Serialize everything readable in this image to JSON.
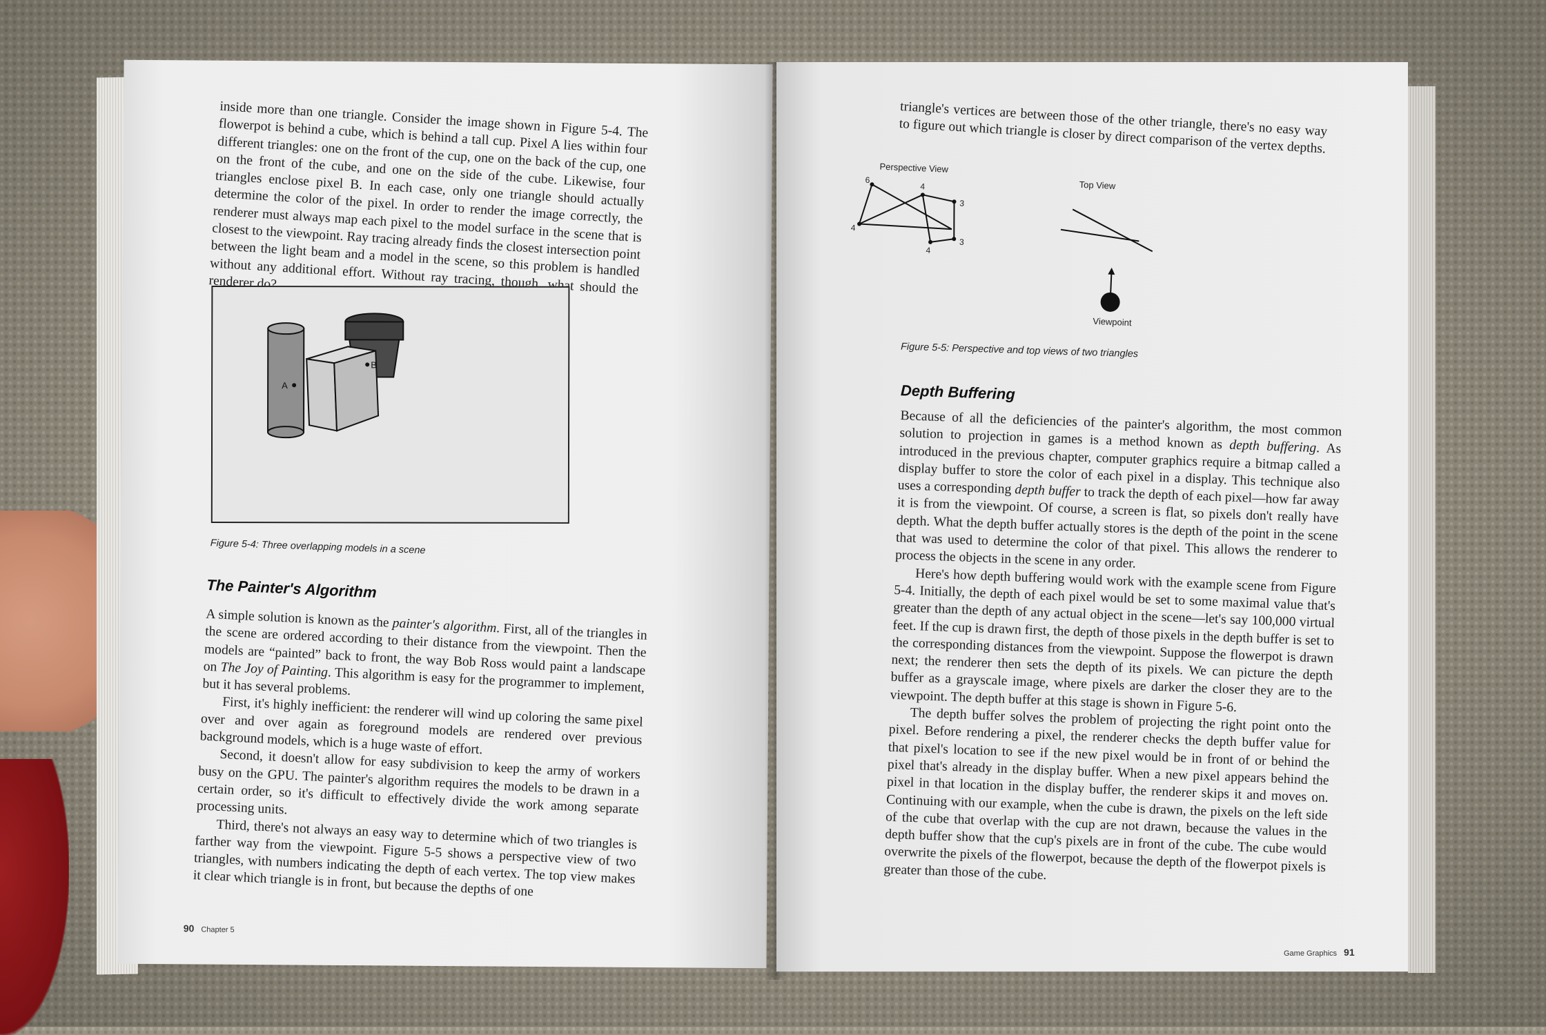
{
  "left_page": {
    "para1": "inside more than one triangle. Consider the image shown in Figure 5-4. The flowerpot is behind a cube, which is behind a tall cup. Pixel A lies within four different triangles: one on the front of the cup, one on the back of the cup, one on the front of the cube, and one on the side of the cube. Likewise, four triangles enclose pixel B. In each case, only one triangle should actually determine the color of the pixel. In order to render the image correctly, the renderer must always map each pixel to the model surface in the scene that is closest to the viewpoint. Ray tracing already finds the closest intersection point between the light beam and a model in the scene, so this problem is handled without any additional effort. Without ray tracing, though, what should the renderer do?",
    "figure_label_a": "A",
    "figure_label_b": "B",
    "figure_caption": "Figure 5-4: Three overlapping models in a scene",
    "heading": "The Painter's Algorithm",
    "para2_part1": "A simple solution is known as the ",
    "para2_term": "painter's algorithm",
    "para2_part2": ". First, all of the triangles in the scene are ordered according to their distance from the viewpoint. Then the models are “painted” back to front, the way Bob Ross would paint a landscape on ",
    "para2_title": "The Joy of Painting",
    "para2_part3": ". This algorithm is easy for the programmer to implement, but it has several problems.",
    "para3": "First, it's highly inefficient: the renderer will wind up coloring the same pixel over and over again as foreground models are rendered over previous background models, which is a huge waste of effort.",
    "para4": "Second, it doesn't allow for easy subdivision to keep the army of workers busy on the GPU. The painter's algorithm requires the models to be drawn in a certain order, so it's difficult to effectively divide the work among separate processing units.",
    "para5": "Third, there's not always an easy way to determine which of two triangles is farther way from the viewpoint. Figure 5-5 shows a perspective view of two triangles, with numbers indicating the depth of each vertex. The top view makes it clear which triangle is in front, but because the depths of one",
    "folio_number": "90",
    "folio_label": "Chapter 5"
  },
  "right_page": {
    "para1": "triangle's vertices are between those of the other triangle, there's no easy way to figure out which triangle is closer by direct comparison of the vertex depths.",
    "fig_persp_title": "Perspective View",
    "fig_top_title": "Top View",
    "fig_viewpoint": "Viewpoint",
    "depths": [
      "6",
      "4",
      "3",
      "4",
      "3",
      "4"
    ],
    "figure_caption": "Figure 5-5: Perspective and top views of two triangles",
    "heading": "Depth Buffering",
    "para2_part1": "Because of all the deficiencies of the painter's algorithm, the most common solution to projection in games is a method known as ",
    "para2_term": "depth buffering",
    "para2_part2": ". As introduced in the previous chapter, computer graphics require a bitmap called a display buffer to store the color of each pixel in a display. This technique also uses a corresponding ",
    "para2_term2": "depth buffer",
    "para2_part3": " to track the depth of each pixel—how far away it is from the viewpoint. Of course, a screen is flat, so pixels don't really have depth. What the depth buffer actually stores is the depth of the point in the scene that was used to determine the color of that pixel. This allows the renderer to process the objects in the scene in any order.",
    "para3": "Here's how depth buffering would work with the example scene from Figure 5-4. Initially, the depth of each pixel would be set to some maximal value that's greater than the depth of any actual object in the scene—let's say 100,000 virtual feet. If the cup is drawn first, the depth of those pixels in the depth buffer is set to the corresponding distances from the viewpoint. Suppose the flowerpot is drawn next; the renderer then sets the depth of its pixels. We can picture the depth buffer as a grayscale image, where pixels are darker the closer they are to the viewpoint. The depth buffer at this stage is shown in Figure 5-6.",
    "para4": "The depth buffer solves the problem of projecting the right point onto the pixel. Before rendering a pixel, the renderer checks the depth buffer value for that pixel's location to see if the new pixel would be in front of or behind the pixel that's already in the display buffer. When a new pixel appears behind the pixel in that location in the display buffer, the renderer skips it and moves on. Continuing with our example, when the cube is drawn, the pixels on the left side of the cube that overlap with the cup are not drawn, because the values in the depth buffer show that the cup's pixels are in front of the cube. The cube would overwrite the pixels of the flowerpot, because the depth of the flowerpot pixels is greater than those of the cube.",
    "folio_label": "Game Graphics",
    "folio_number": "91"
  }
}
